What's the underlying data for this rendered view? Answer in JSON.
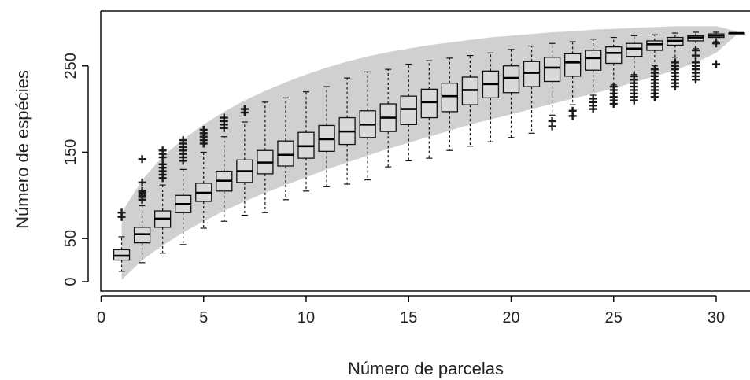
{
  "chart_data": {
    "type": "box",
    "title": "",
    "xlabel": "Número de parcelas",
    "ylabel": "Número de espécies",
    "xlim": [
      0,
      31.5
    ],
    "ylim": [
      0,
      300
    ],
    "x_ticks": [
      0,
      5,
      10,
      15,
      20,
      25,
      30
    ],
    "y_ticks": [
      0,
      50,
      150,
      250
    ],
    "grid": false,
    "legend": "none",
    "colors": {
      "box_fill": "#d9d9d9",
      "band_fill": "#d0d0d0",
      "outlier": "#1a1a1a"
    },
    "band": {
      "x": [
        1,
        2,
        3,
        4,
        5,
        6,
        7,
        8,
        9,
        10,
        11,
        12,
        13,
        14,
        15,
        16,
        17,
        18,
        19,
        20,
        21,
        22,
        23,
        24,
        25,
        26,
        27,
        28,
        29,
        30,
        31
      ],
      "upper": [
        80,
        118,
        145,
        165,
        182,
        197,
        210,
        221,
        231,
        240,
        248,
        255,
        261,
        266,
        270,
        274,
        277,
        280,
        283,
        285,
        287,
        289,
        290,
        292,
        293,
        294,
        295,
        296,
        296,
        296,
        290
      ],
      "lower": [
        2,
        25,
        42,
        57,
        70,
        82,
        93,
        103,
        112,
        121,
        130,
        138,
        146,
        154,
        161,
        168,
        175,
        182,
        188,
        194,
        200,
        206,
        212,
        218,
        224,
        231,
        238,
        245,
        254,
        265,
        286
      ]
    },
    "boxes": [
      {
        "x": 1,
        "min": 12,
        "q1": 25,
        "median": 30,
        "q3": 37,
        "max": 52,
        "outliers": [
          75,
          80
        ]
      },
      {
        "x": 2,
        "min": 22,
        "q1": 45,
        "median": 55,
        "q3": 63,
        "max": 88,
        "outliers": [
          95,
          98,
          100,
          103,
          105,
          115,
          142
        ]
      },
      {
        "x": 3,
        "min": 33,
        "q1": 63,
        "median": 73,
        "q3": 82,
        "max": 112,
        "outliers": [
          120,
          124,
          128,
          132,
          136,
          144,
          148,
          152
        ]
      },
      {
        "x": 4,
        "min": 43,
        "q1": 80,
        "median": 90,
        "q3": 100,
        "max": 130,
        "outliers": [
          140,
          144,
          148,
          152,
          156,
          160,
          164
        ]
      },
      {
        "x": 5,
        "min": 62,
        "q1": 93,
        "median": 103,
        "q3": 114,
        "max": 150,
        "outliers": [
          160,
          164,
          168,
          172,
          176
        ]
      },
      {
        "x": 6,
        "min": 70,
        "q1": 105,
        "median": 117,
        "q3": 128,
        "max": 168,
        "outliers": [
          178,
          182,
          186,
          190
        ]
      },
      {
        "x": 7,
        "min": 77,
        "q1": 115,
        "median": 128,
        "q3": 141,
        "max": 185,
        "outliers": [
          196,
          200
        ]
      },
      {
        "x": 8,
        "min": 80,
        "q1": 125,
        "median": 138,
        "q3": 152,
        "max": 208,
        "outliers": []
      },
      {
        "x": 9,
        "min": 95,
        "q1": 134,
        "median": 147,
        "q3": 163,
        "max": 213,
        "outliers": []
      },
      {
        "x": 10,
        "min": 105,
        "q1": 143,
        "median": 157,
        "q3": 173,
        "max": 220,
        "outliers": []
      },
      {
        "x": 11,
        "min": 110,
        "q1": 151,
        "median": 165,
        "q3": 181,
        "max": 226,
        "outliers": []
      },
      {
        "x": 12,
        "min": 113,
        "q1": 159,
        "median": 174,
        "q3": 190,
        "max": 236,
        "outliers": []
      },
      {
        "x": 13,
        "min": 118,
        "q1": 167,
        "median": 182,
        "q3": 198,
        "max": 243,
        "outliers": []
      },
      {
        "x": 14,
        "min": 133,
        "q1": 174,
        "median": 190,
        "q3": 206,
        "max": 246,
        "outliers": []
      },
      {
        "x": 15,
        "min": 140,
        "q1": 182,
        "median": 200,
        "q3": 215,
        "max": 252,
        "outliers": []
      },
      {
        "x": 16,
        "min": 143,
        "q1": 190,
        "median": 208,
        "q3": 223,
        "max": 256,
        "outliers": []
      },
      {
        "x": 17,
        "min": 152,
        "q1": 197,
        "median": 215,
        "q3": 230,
        "max": 259,
        "outliers": []
      },
      {
        "x": 18,
        "min": 157,
        "q1": 205,
        "median": 222,
        "q3": 237,
        "max": 262,
        "outliers": []
      },
      {
        "x": 19,
        "min": 162,
        "q1": 213,
        "median": 229,
        "q3": 244,
        "max": 265,
        "outliers": []
      },
      {
        "x": 20,
        "min": 167,
        "q1": 219,
        "median": 236,
        "q3": 250,
        "max": 269,
        "outliers": []
      },
      {
        "x": 21,
        "min": 172,
        "q1": 226,
        "median": 242,
        "q3": 255,
        "max": 273,
        "outliers": []
      },
      {
        "x": 22,
        "min": 193,
        "q1": 232,
        "median": 248,
        "q3": 260,
        "max": 276,
        "outliers": [
          180,
          186
        ]
      },
      {
        "x": 23,
        "min": 205,
        "q1": 238,
        "median": 254,
        "q3": 264,
        "max": 278,
        "outliers": [
          192,
          198
        ]
      },
      {
        "x": 24,
        "min": 216,
        "q1": 245,
        "median": 259,
        "q3": 268,
        "max": 281,
        "outliers": [
          200,
          204,
          208,
          212
        ]
      },
      {
        "x": 25,
        "min": 228,
        "q1": 253,
        "median": 265,
        "q3": 272,
        "max": 283,
        "outliers": [
          206,
          210,
          214,
          218,
          222,
          226
        ]
      },
      {
        "x": 26,
        "min": 240,
        "q1": 261,
        "median": 270,
        "q3": 276,
        "max": 285,
        "outliers": [
          210,
          214,
          218,
          222,
          226,
          230,
          234,
          238
        ]
      },
      {
        "x": 27,
        "min": 250,
        "q1": 268,
        "median": 275,
        "q3": 279,
        "max": 286,
        "outliers": [
          214,
          218,
          222,
          226,
          230,
          234,
          238,
          242,
          246
        ]
      },
      {
        "x": 28,
        "min": 260,
        "q1": 274,
        "median": 279,
        "q3": 283,
        "max": 288,
        "outliers": [
          226,
          230,
          234,
          238,
          242,
          246,
          250,
          254
        ]
      },
      {
        "x": 29,
        "min": 270,
        "q1": 279,
        "median": 283,
        "q3": 285,
        "max": 289,
        "outliers": [
          234,
          238,
          242,
          246,
          250,
          254,
          262,
          268
        ]
      },
      {
        "x": 30,
        "min": 278,
        "q1": 283,
        "median": 285,
        "q3": 287,
        "max": 289,
        "outliers": [
          252,
          276
        ]
      },
      {
        "x": 31,
        "min": 288,
        "q1": 288,
        "median": 288,
        "q3": 288,
        "max": 288,
        "outliers": []
      }
    ]
  }
}
